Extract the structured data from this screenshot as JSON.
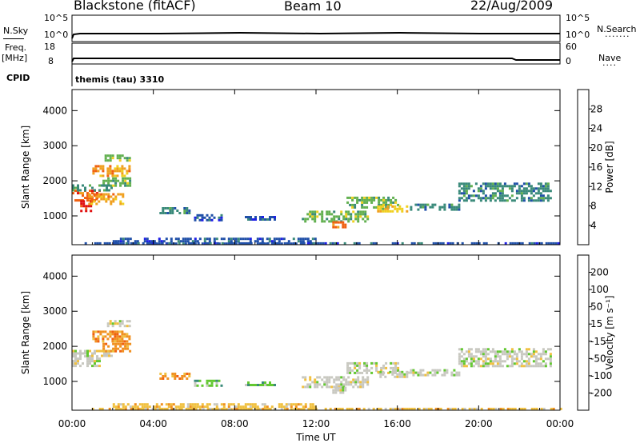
{
  "header": {
    "radar": "Blackstone (fitACF)",
    "beam": "Beam 10",
    "date": "22/Aug/2009",
    "cpid_label": "CPID",
    "cpid_text": "themis (tau) 3310"
  },
  "status_panels": {
    "nsky": {
      "left_label": "N.Sky",
      "right_label": "N.Search",
      "left_ticks": [
        "10^5",
        "10^0"
      ],
      "right_ticks": [
        "10^5",
        "10^0"
      ]
    },
    "freq": {
      "left_label": "Freq.",
      "left_unit": "[MHz]",
      "right_label": "Nave",
      "left_ticks": [
        "18",
        "8"
      ],
      "right_ticks": [
        "60",
        "0"
      ]
    }
  },
  "colors": {
    "power_scale": [
      "#1e1ee6",
      "#2050a8",
      "#3a8a7a",
      "#62b050",
      "#f0d020",
      "#f0a020",
      "#f06010",
      "#e01010"
    ],
    "velocity_scale": [
      "#1e1ee6",
      "#2050a8",
      "#3a8a7a",
      "#62c830",
      "#c8c8c0",
      "#f0c040",
      "#f09020",
      "#f06010",
      "#e01010"
    ]
  },
  "chart_data": [
    {
      "type": "heatmap",
      "title": "",
      "xlabel": "",
      "ylabel": "Slant Range [km]",
      "x_ticks": [
        "00:00",
        "04:00",
        "08:00",
        "12:00",
        "16:00",
        "20:00",
        "00:00"
      ],
      "xlim_hours": [
        0,
        24
      ],
      "ylim_km": [
        180,
        4600
      ],
      "y_ticks": [
        1000,
        2000,
        3000,
        4000
      ],
      "colorbar": {
        "label": "Power [dB]",
        "ticks": [
          "4",
          "8",
          "12",
          "16",
          "20",
          "24",
          "28"
        ]
      },
      "regions": [
        {
          "t0": 0.0,
          "t1": 1.3,
          "r0": 1450,
          "r1": 1750,
          "level": 6
        },
        {
          "t0": 0.4,
          "t1": 0.9,
          "r0": 1150,
          "r1": 1450,
          "level": 7
        },
        {
          "t0": 0.8,
          "t1": 2.5,
          "r0": 1350,
          "r1": 1650,
          "level": 5
        },
        {
          "t0": 1.0,
          "t1": 2.8,
          "r0": 2150,
          "r1": 2450,
          "level": 5
        },
        {
          "t0": 1.5,
          "t1": 2.8,
          "r0": 1850,
          "r1": 2100,
          "level": 3
        },
        {
          "t0": 1.6,
          "t1": 2.8,
          "r0": 2550,
          "r1": 2750,
          "level": 3
        },
        {
          "t0": 0.0,
          "t1": 2.0,
          "r0": 1750,
          "r1": 1900,
          "level": 2
        },
        {
          "t0": 4.3,
          "t1": 5.8,
          "r0": 1050,
          "r1": 1250,
          "level": 2
        },
        {
          "t0": 6.0,
          "t1": 7.3,
          "r0": 900,
          "r1": 1050,
          "level": 1
        },
        {
          "t0": 8.5,
          "t1": 10.0,
          "r0": 900,
          "r1": 1000,
          "level": 1
        },
        {
          "t0": 11.3,
          "t1": 14.5,
          "r0": 850,
          "r1": 1150,
          "level": 3
        },
        {
          "t0": 12.8,
          "t1": 13.5,
          "r0": 700,
          "r1": 850,
          "level": 6
        },
        {
          "t0": 13.5,
          "t1": 16.0,
          "r0": 1250,
          "r1": 1550,
          "level": 3
        },
        {
          "t0": 15.0,
          "t1": 16.5,
          "r0": 1100,
          "r1": 1300,
          "level": 4
        },
        {
          "t0": 16.5,
          "t1": 19.0,
          "r0": 1150,
          "r1": 1350,
          "level": 2
        },
        {
          "t0": 19.0,
          "t1": 23.5,
          "r0": 1450,
          "r1": 1950,
          "level": 2
        },
        {
          "t0": 2.0,
          "t1": 12.0,
          "r0": 200,
          "r1": 380,
          "level": 1
        },
        {
          "t0": 0.5,
          "t1": 24.0,
          "r0": 190,
          "r1": 250,
          "level": 1
        }
      ]
    },
    {
      "type": "heatmap",
      "title": "",
      "xlabel": "Time UT",
      "ylabel": "Slant Range [km]",
      "x_ticks": [
        "00:00",
        "04:00",
        "08:00",
        "12:00",
        "16:00",
        "20:00",
        "00:00"
      ],
      "xlim_hours": [
        0,
        24
      ],
      "ylim_km": [
        180,
        4600
      ],
      "y_ticks": [
        1000,
        2000,
        3000,
        4000
      ],
      "colorbar": {
        "label": "Velocity [m s⁻¹]",
        "ticks": [
          "200",
          "100",
          "50",
          "15",
          "-15",
          "-50",
          "-100",
          "-200"
        ]
      },
      "regions": [
        {
          "t0": 0.0,
          "t1": 1.3,
          "r0": 1450,
          "r1": 1750,
          "level": 4
        },
        {
          "t0": 0.0,
          "t1": 2.0,
          "r0": 1750,
          "r1": 1900,
          "level": 4
        },
        {
          "t0": 1.0,
          "t1": 2.8,
          "r0": 2150,
          "r1": 2450,
          "level": 6
        },
        {
          "t0": 1.6,
          "t1": 2.8,
          "r0": 2550,
          "r1": 2750,
          "level": 4
        },
        {
          "t0": 1.5,
          "t1": 2.8,
          "r0": 1850,
          "r1": 2100,
          "level": 6
        },
        {
          "t0": 4.3,
          "t1": 5.8,
          "r0": 1050,
          "r1": 1250,
          "level": 6
        },
        {
          "t0": 6.0,
          "t1": 7.3,
          "r0": 900,
          "r1": 1050,
          "level": 3
        },
        {
          "t0": 8.5,
          "t1": 10.0,
          "r0": 900,
          "r1": 1000,
          "level": 3
        },
        {
          "t0": 11.3,
          "t1": 14.5,
          "r0": 850,
          "r1": 1150,
          "level": 4
        },
        {
          "t0": 12.8,
          "t1": 13.5,
          "r0": 700,
          "r1": 850,
          "level": 4
        },
        {
          "t0": 13.5,
          "t1": 16.0,
          "r0": 1250,
          "r1": 1550,
          "level": 4
        },
        {
          "t0": 15.0,
          "t1": 16.5,
          "r0": 1100,
          "r1": 1300,
          "level": 4
        },
        {
          "t0": 16.5,
          "t1": 19.0,
          "r0": 1150,
          "r1": 1350,
          "level": 4
        },
        {
          "t0": 19.0,
          "t1": 23.5,
          "r0": 1450,
          "r1": 1950,
          "level": 4
        },
        {
          "t0": 2.0,
          "t1": 12.0,
          "r0": 200,
          "r1": 380,
          "level": 5
        },
        {
          "t0": 0.5,
          "t1": 24.0,
          "r0": 190,
          "r1": 250,
          "level": 5
        }
      ]
    }
  ]
}
